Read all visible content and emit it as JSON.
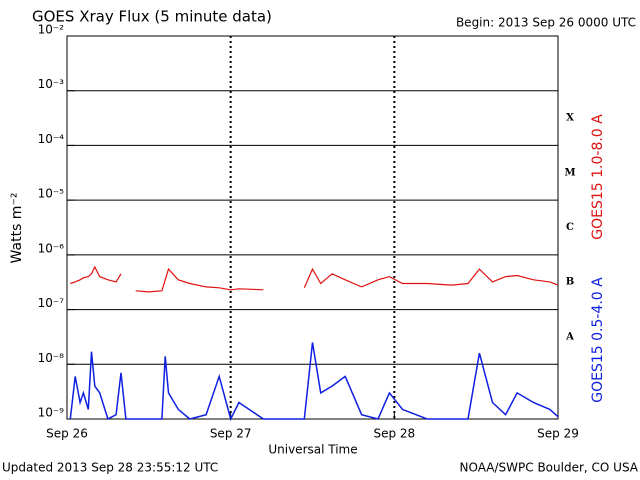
{
  "chart_data": {
    "type": "line",
    "title": "GOES Xray Flux (5 minute data)",
    "begin": "Begin:  2013 Sep 26 0000 UTC",
    "xlabel": "Universal Time",
    "ylabel": "Watts m⁻²",
    "updated": "Updated 2013 Sep 28 23:55:12 UTC",
    "credit": "NOAA/SWPC Boulder, CO USA",
    "log_y": true,
    "grid": true,
    "ylim": [
      1e-09,
      0.01
    ],
    "yticks": [
      {
        "value": 0.01,
        "label": "10⁻²"
      },
      {
        "value": 0.001,
        "label": "10⁻³"
      },
      {
        "value": 0.0001,
        "label": "10⁻⁴"
      },
      {
        "value": 1e-05,
        "label": "10⁻⁵"
      },
      {
        "value": 1e-06,
        "label": "10⁻⁶"
      },
      {
        "value": 1e-07,
        "label": "10⁻⁷"
      },
      {
        "value": 1e-08,
        "label": "10⁻⁸"
      },
      {
        "value": 1e-09,
        "label": "10⁻⁹"
      }
    ],
    "xlim": [
      0,
      3
    ],
    "xticks": [
      {
        "value": 0,
        "label": "Sep 26"
      },
      {
        "value": 1,
        "label": "Sep 27"
      },
      {
        "value": 2,
        "label": "Sep 28"
      },
      {
        "value": 3,
        "label": "Sep 29"
      }
    ],
    "flare_classes": [
      "X",
      "M",
      "C",
      "B",
      "A"
    ],
    "x": [
      0.02,
      0.05,
      0.08,
      0.1,
      0.13,
      0.15,
      0.17,
      0.2,
      0.25,
      0.3,
      0.33,
      0.36,
      0.42,
      0.5,
      0.58,
      0.6,
      0.62,
      0.68,
      0.75,
      0.85,
      0.93,
      1.0,
      1.05,
      1.2,
      1.35,
      1.45,
      1.5,
      1.55,
      1.62,
      1.7,
      1.8,
      1.9,
      1.97,
      2.05,
      2.2,
      2.35,
      2.45,
      2.52,
      2.6,
      2.68,
      2.75,
      2.85,
      2.95,
      3.0
    ],
    "series": [
      {
        "name": "GOES15 1.0-8.0 A",
        "color": "#e01010",
        "values": [
          3e-07,
          3.2e-07,
          3.5e-07,
          3.8e-07,
          4e-07,
          4.5e-07,
          6e-07,
          4e-07,
          3.5e-07,
          3.2e-07,
          4.5e-07,
          null,
          2.2e-07,
          2.1e-07,
          2.2e-07,
          3.5e-07,
          5.5e-07,
          3.5e-07,
          3e-07,
          2.6e-07,
          2.5e-07,
          2.3e-07,
          2.4e-07,
          2.3e-07,
          null,
          2.5e-07,
          5.5e-07,
          3e-07,
          4.5e-07,
          3.5e-07,
          2.6e-07,
          3.5e-07,
          4e-07,
          3e-07,
          3e-07,
          2.8e-07,
          3e-07,
          5.5e-07,
          3.2e-07,
          4e-07,
          4.2e-07,
          3.5e-07,
          3.2e-07,
          2.8e-07
        ]
      },
      {
        "name": "GOES15 0.5-4.0 A",
        "color": "#1020e0",
        "values": [
          1e-09,
          6e-09,
          2e-09,
          3e-09,
          1.5e-09,
          1.7e-08,
          4e-09,
          3e-09,
          1e-09,
          1.2e-09,
          7e-09,
          1e-09,
          1e-09,
          1e-09,
          1e-09,
          1.4e-08,
          3e-09,
          1.5e-09,
          1e-09,
          1.2e-09,
          6e-09,
          1e-09,
          2e-09,
          1e-09,
          1e-09,
          1e-09,
          2.5e-08,
          3e-09,
          4e-09,
          6e-09,
          1.2e-09,
          1e-09,
          3e-09,
          1.5e-09,
          1e-09,
          1e-09,
          1e-09,
          1.6e-08,
          2e-09,
          1.2e-09,
          3e-09,
          2e-09,
          1.5e-09,
          1.1e-09
        ]
      }
    ]
  }
}
